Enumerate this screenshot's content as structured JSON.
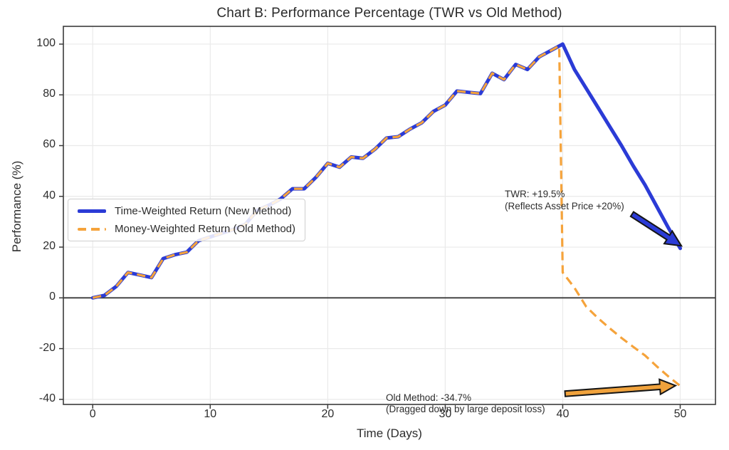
{
  "chart_data": {
    "type": "line",
    "title": "Chart B: Performance Percentage (TWR vs Old Method)",
    "xlabel": "Time (Days)",
    "ylabel": "Performance (%)",
    "xlim": [
      -2.5,
      53
    ],
    "ylim": [
      -42,
      107
    ],
    "xticks": [
      0,
      10,
      20,
      30,
      40,
      50
    ],
    "yticks": [
      -40,
      -20,
      0,
      20,
      40,
      60,
      80,
      100
    ],
    "grid": true,
    "zero_line": true,
    "legend_position": "center-left",
    "colors": {
      "blue": "#2B3BD6",
      "orange": "#F5A33B",
      "grid": "#eaeaea",
      "spine": "#3b3b3b",
      "zero_line": "#3a3a3a",
      "text": "#2d2d2d"
    },
    "series": [
      {
        "id": "twr",
        "name": "Time-Weighted Return (New Method)",
        "color": "#2B3BD6",
        "style": "solid",
        "width": 5,
        "points": [
          [
            0,
            0
          ],
          [
            1,
            1
          ],
          [
            2,
            4.5
          ],
          [
            3,
            10
          ],
          [
            4,
            9
          ],
          [
            5,
            8
          ],
          [
            6,
            15.5
          ],
          [
            7,
            17
          ],
          [
            8,
            18
          ],
          [
            9,
            22.5
          ],
          [
            10,
            24
          ],
          [
            11,
            25.5
          ],
          [
            12,
            27
          ],
          [
            13,
            29
          ],
          [
            14,
            34.5
          ],
          [
            15,
            36.5
          ],
          [
            16,
            39
          ],
          [
            17,
            43
          ],
          [
            18,
            43
          ],
          [
            19,
            47.5
          ],
          [
            20,
            53
          ],
          [
            21,
            51.5
          ],
          [
            22,
            55.5
          ],
          [
            23,
            55
          ],
          [
            24,
            58.5
          ],
          [
            25,
            63
          ],
          [
            26,
            63.5
          ],
          [
            27,
            66.5
          ],
          [
            28,
            69
          ],
          [
            29,
            73.5
          ],
          [
            30,
            76
          ],
          [
            31,
            81.5
          ],
          [
            32,
            81
          ],
          [
            33,
            80.5
          ],
          [
            34,
            88.5
          ],
          [
            35,
            86
          ],
          [
            36,
            92
          ],
          [
            37,
            90
          ],
          [
            38,
            95
          ],
          [
            39,
            97.5
          ],
          [
            40,
            100
          ],
          [
            41,
            90
          ],
          [
            42,
            82.5
          ],
          [
            43,
            75
          ],
          [
            44,
            67.5
          ],
          [
            45,
            60
          ],
          [
            46,
            52
          ],
          [
            47,
            44.5
          ],
          [
            48,
            36
          ],
          [
            49,
            27.5
          ],
          [
            50,
            19.5
          ]
        ]
      },
      {
        "id": "mwr",
        "name": "Money-Weighted Return (Old Method)",
        "color": "#F5A33B",
        "style": "dashed",
        "dash": "12 7",
        "width": 3.2,
        "points": [
          [
            0,
            0
          ],
          [
            1,
            1
          ],
          [
            2,
            4.5
          ],
          [
            3,
            10
          ],
          [
            4,
            9
          ],
          [
            5,
            8
          ],
          [
            6,
            15.5
          ],
          [
            7,
            17
          ],
          [
            8,
            18
          ],
          [
            9,
            22.5
          ],
          [
            10,
            24
          ],
          [
            11,
            25.5
          ],
          [
            12,
            27
          ],
          [
            13,
            29
          ],
          [
            14,
            34.5
          ],
          [
            15,
            36.5
          ],
          [
            16,
            39
          ],
          [
            17,
            43
          ],
          [
            18,
            43
          ],
          [
            19,
            47.5
          ],
          [
            20,
            53
          ],
          [
            21,
            51.5
          ],
          [
            22,
            55.5
          ],
          [
            23,
            55
          ],
          [
            24,
            58.5
          ],
          [
            25,
            63
          ],
          [
            26,
            63.5
          ],
          [
            27,
            66.5
          ],
          [
            28,
            69
          ],
          [
            29,
            73.5
          ],
          [
            30,
            76
          ],
          [
            31,
            81.5
          ],
          [
            32,
            81
          ],
          [
            33,
            80.5
          ],
          [
            34,
            88.5
          ],
          [
            35,
            86
          ],
          [
            36,
            92
          ],
          [
            37,
            90
          ],
          [
            38,
            95
          ],
          [
            39,
            97.5
          ],
          [
            39.7,
            99.3
          ],
          [
            40,
            10
          ],
          [
            41,
            4
          ],
          [
            42,
            -3.5
          ],
          [
            43,
            -8
          ],
          [
            44,
            -12
          ],
          [
            45,
            -15.8
          ],
          [
            46,
            -19.3
          ],
          [
            47,
            -22.7
          ],
          [
            48,
            -27
          ],
          [
            49,
            -31
          ],
          [
            50,
            -34.7
          ]
        ]
      }
    ],
    "annotations": [
      {
        "id": "twr",
        "lines": [
          "TWR: +19.5%",
          "(Reflects Asset Price +20%)"
        ]
      },
      {
        "id": "old-method",
        "lines": [
          "Old Method: -34.7%",
          "(Dragged down by large deposit loss)"
        ]
      }
    ],
    "arrows": [
      {
        "id": "twr",
        "color": "#2B3BD6",
        "outline": "#151515",
        "from": [
          45.9,
          33.0
        ],
        "to": [
          50.1,
          20.5
        ]
      },
      {
        "id": "old-method",
        "color": "#F0A23C",
        "outline": "#151515",
        "from": [
          40.2,
          -37.8
        ],
        "to": [
          49.6,
          -34.6
        ]
      }
    ]
  }
}
